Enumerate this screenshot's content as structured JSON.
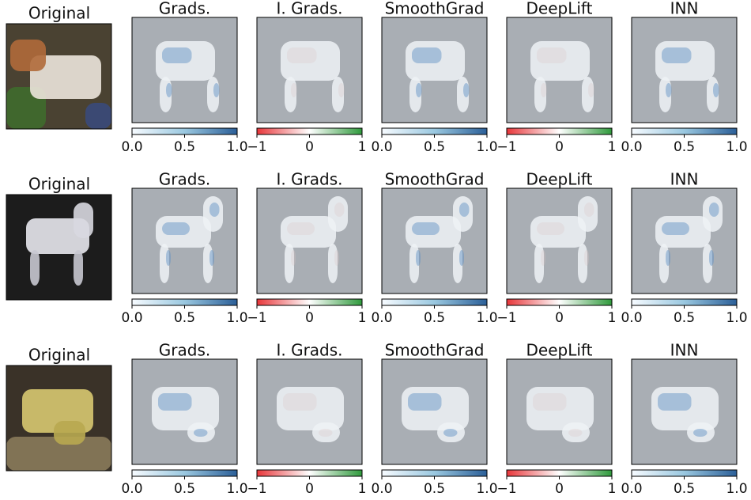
{
  "rows": [
    {
      "original_title": "Original",
      "panels": [
        {
          "title": "Grads.",
          "colormap": "blues",
          "lim": [
            0,
            1
          ],
          "ticks": [
            {
              "value": 0,
              "label": "0.0"
            },
            {
              "value": 0.5,
              "label": "0.5"
            },
            {
              "value": 1,
              "label": "1.0"
            }
          ]
        },
        {
          "title": "I. Grads.",
          "colormap": "redgreen",
          "lim": [
            -1,
            1
          ],
          "ticks": [
            {
              "value": -1,
              "label": "−1"
            },
            0,
            1
          ]
        },
        {
          "title": "SmoothGrad",
          "colormap": "blues",
          "lim": [
            0,
            1
          ],
          "ticks": [
            {
              "value": 0,
              "label": "0.0"
            },
            {
              "value": 0.5,
              "label": "0.5"
            },
            {
              "value": 1,
              "label": "1.0"
            }
          ]
        },
        {
          "title": "DeepLift",
          "colormap": "redgreen",
          "lim": [
            -1,
            1
          ],
          "ticks": [
            {
              "value": -1,
              "label": "−1"
            },
            0,
            1
          ]
        },
        {
          "title": "INN",
          "colormap": "blues",
          "lim": [
            0,
            1
          ],
          "ticks": [
            {
              "value": 0,
              "label": "0.0"
            },
            {
              "value": 0.5,
              "label": "0.5"
            },
            {
              "value": 1,
              "label": "1.0"
            }
          ]
        }
      ]
    },
    {
      "original_title": "Original",
      "panels": [
        {
          "title": "Grads.",
          "colormap": "blues",
          "lim": [
            0,
            1
          ],
          "ticks": [
            {
              "value": 0,
              "label": "0.0"
            },
            {
              "value": 0.5,
              "label": "0.5"
            },
            {
              "value": 1,
              "label": "1.0"
            }
          ]
        },
        {
          "title": "I. Grads.",
          "colormap": "redgreen",
          "lim": [
            -1,
            1
          ],
          "ticks": [
            {
              "value": -1,
              "label": "−1"
            },
            0,
            1
          ]
        },
        {
          "title": "SmoothGrad",
          "colormap": "blues",
          "lim": [
            0,
            1
          ],
          "ticks": [
            {
              "value": 0,
              "label": "0.0"
            },
            {
              "value": 0.5,
              "label": "0.5"
            },
            {
              "value": 1,
              "label": "1.0"
            }
          ]
        },
        {
          "title": "DeepLift",
          "colormap": "redgreen",
          "lim": [
            -1,
            1
          ],
          "ticks": [
            {
              "value": -1,
              "label": "−1"
            },
            0,
            1
          ]
        },
        {
          "title": "INN",
          "colormap": "blues",
          "lim": [
            0,
            1
          ],
          "ticks": [
            {
              "value": 0,
              "label": "0.0"
            },
            {
              "value": 0.5,
              "label": "0.5"
            },
            {
              "value": 1,
              "label": "1.0"
            }
          ]
        }
      ]
    },
    {
      "original_title": "Original",
      "panels": [
        {
          "title": "Grads.",
          "colormap": "blues",
          "lim": [
            0,
            1
          ],
          "ticks": [
            {
              "value": 0,
              "label": "0.0"
            },
            {
              "value": 0.5,
              "label": "0.5"
            },
            {
              "value": 1,
              "label": "1.0"
            }
          ]
        },
        {
          "title": "I. Grads.",
          "colormap": "redgreen",
          "lim": [
            -1,
            1
          ],
          "ticks": [
            {
              "value": -1,
              "label": "−1"
            },
            0,
            1
          ]
        },
        {
          "title": "SmoothGrad",
          "colormap": "blues",
          "lim": [
            0,
            1
          ],
          "ticks": [
            {
              "value": 0,
              "label": "0.0"
            },
            {
              "value": 0.5,
              "label": "0.5"
            },
            {
              "value": 1,
              "label": "1.0"
            }
          ]
        },
        {
          "title": "DeepLift",
          "colormap": "redgreen",
          "lim": [
            -1,
            1
          ],
          "ticks": [
            {
              "value": -1,
              "label": "−1"
            },
            0,
            1
          ]
        },
        {
          "title": "INN",
          "colormap": "blues",
          "lim": [
            0,
            1
          ],
          "ticks": [
            {
              "value": 0,
              "label": "0.0"
            },
            {
              "value": 0.5,
              "label": "0.5"
            },
            {
              "value": 1,
              "label": "1.0"
            }
          ]
        }
      ]
    }
  ]
}
